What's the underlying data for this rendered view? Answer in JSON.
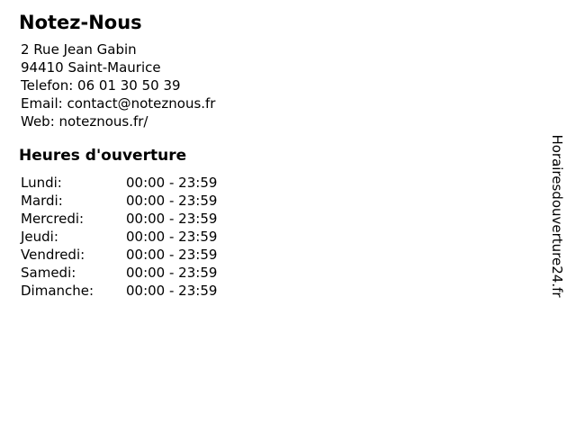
{
  "page": {
    "background_color": "#ffffff",
    "text_color": "#000000"
  },
  "header": {
    "company_name": "Notez-Nous"
  },
  "contact": {
    "address_line1": "2 Rue Jean Gabin",
    "address_line2": "94410 Saint-Maurice",
    "phone_label": "Telefon:",
    "phone_value": "06 01 30 50 39",
    "email_label": "Email:",
    "email_value": "contact@noteznous.fr",
    "web_label": "Web:",
    "web_value": "noteznous.fr/"
  },
  "opening_hours": {
    "heading": "Heures d'ouverture",
    "days": [
      {
        "label": "Lundi:",
        "hours": "00:00 - 23:59"
      },
      {
        "label": "Mardi:",
        "hours": "00:00 - 23:59"
      },
      {
        "label": "Mercredi:",
        "hours": "00:00 - 23:59"
      },
      {
        "label": "Jeudi:",
        "hours": "00:00 - 23:59"
      },
      {
        "label": "Vendredi:",
        "hours": "00:00 - 23:59"
      },
      {
        "label": "Samedi:",
        "hours": "00:00 - 23:59"
      },
      {
        "label": "Dimanche:",
        "hours": "00:00 - 23:59"
      }
    ]
  },
  "watermark": {
    "text": "Horairesdouverture24.fr"
  }
}
